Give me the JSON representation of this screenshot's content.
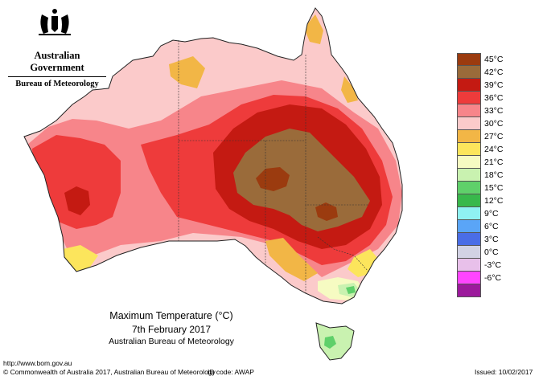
{
  "government": "Australian Government",
  "bureau": "Bureau of Meteorology",
  "title": "Maximum Temperature (°C)",
  "date": "7th February 2017",
  "issuer": "Australian Bureau of Meteorology",
  "footer": {
    "url": "http://www.bom.gov.au",
    "copyright": "© Commonwealth of Australia 2017, Australian Bureau of Meteorology",
    "id_code": "ID code: AWAP",
    "issued": "Issued: 10/02/2017"
  },
  "legend": [
    {
      "label": "45°C",
      "color": "#9b3b0f"
    },
    {
      "label": "42°C",
      "color": "#9a6b3a"
    },
    {
      "label": "39°C",
      "color": "#c41a12"
    },
    {
      "label": "36°C",
      "color": "#ee3b3b"
    },
    {
      "label": "33°C",
      "color": "#f7858a"
    },
    {
      "label": "30°C",
      "color": "#fbcaca"
    },
    {
      "label": "27°C",
      "color": "#f2b646"
    },
    {
      "label": "24°C",
      "color": "#fce55c"
    },
    {
      "label": "21°C",
      "color": "#f6fbc2"
    },
    {
      "label": "18°C",
      "color": "#c9f2b0"
    },
    {
      "label": "15°C",
      "color": "#5fd06a"
    },
    {
      "label": "12°C",
      "color": "#38b84b"
    },
    {
      "label": "9°C",
      "color": "#8ff2f2"
    },
    {
      "label": "6°C",
      "color": "#5aa5f7"
    },
    {
      "label": "3°C",
      "color": "#4a6de6"
    },
    {
      "label": "0°C",
      "color": "#d2d2e4"
    },
    {
      "label": "-3°C",
      "color": "#e8c0ea"
    },
    {
      "label": "-6°C",
      "color": "#ff45ff"
    }
  ],
  "bottom_swatch_color": "#9c1a9c"
}
